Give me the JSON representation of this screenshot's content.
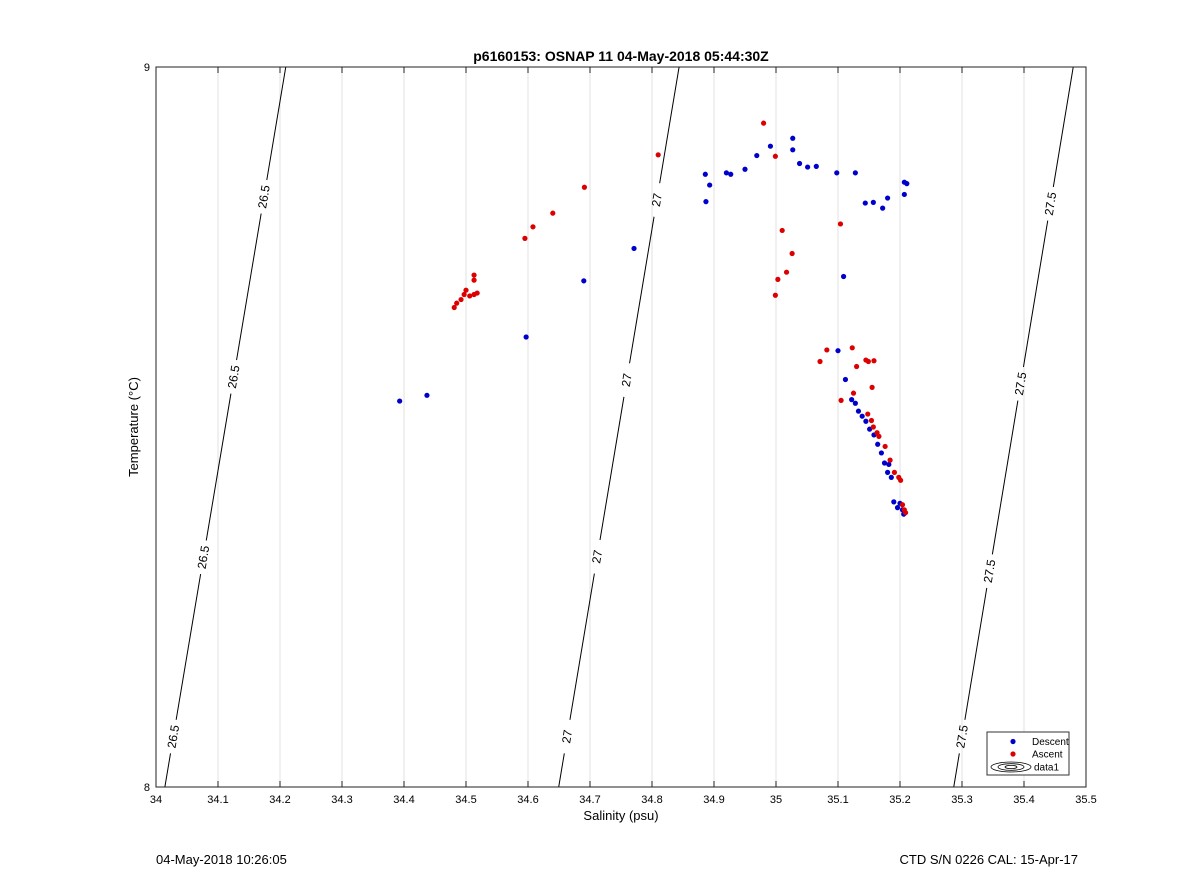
{
  "footer": {
    "timestamp": "04-May-2018 10:26:05",
    "ctd_info": "CTD S/N 0226  CAL: 15-Apr-17"
  },
  "chart_data": {
    "type": "scatter",
    "title": "p6160153: OSNAP 11 04-May-2018 05:44:30Z",
    "xlabel": "Salinity (psu)",
    "ylabel": "Temperature (°C)",
    "xlim": [
      34,
      35.5
    ],
    "ylim": [
      8,
      9
    ],
    "xticks": [
      34,
      34.1,
      34.2,
      34.3,
      34.4,
      34.5,
      34.6,
      34.7,
      34.8,
      34.9,
      35,
      35.1,
      35.2,
      35.3,
      35.4,
      35.5
    ],
    "xtick_labels": [
      "34",
      "34.1",
      "34.2",
      "34.3",
      "34.4",
      "34.5",
      "34.6",
      "34.7",
      "34.8",
      "34.9",
      "35",
      "35.1",
      "35.2",
      "35.3",
      "35.4",
      "35.5"
    ],
    "yticks": [
      8,
      9
    ],
    "ytick_labels": [
      "8",
      "9"
    ],
    "grid": "vertical",
    "legend_position": "bottom-right",
    "colors": {
      "descent": "#0000cc",
      "ascent": "#dd0000",
      "contour": "#000000",
      "grid": "#e0e0e0"
    },
    "contours": [
      {
        "label": "26.5",
        "points": [
          [
            34.0143,
            8.0
          ],
          [
            34.2093,
            9.0
          ]
        ],
        "label_positions": [
          [
            34.028,
            8.07
          ],
          [
            34.07,
            8.32
          ],
          [
            34.123,
            8.57
          ],
          [
            34.172,
            8.82
          ]
        ]
      },
      {
        "label": "27",
        "points": [
          [
            34.6495,
            8.0
          ],
          [
            34.8437,
            9.0
          ]
        ],
        "label_positions": [
          [
            34.663,
            8.07
          ],
          [
            34.71,
            8.32
          ],
          [
            34.76,
            8.565
          ],
          [
            34.81,
            8.815
          ]
        ]
      },
      {
        "label": "27.5",
        "points": [
          [
            35.2867,
            8.0
          ],
          [
            35.4794,
            9.0
          ]
        ],
        "label_positions": [
          [
            35.3,
            8.07
          ],
          [
            35.343,
            8.3
          ],
          [
            35.395,
            8.56
          ],
          [
            35.443,
            8.81
          ]
        ]
      }
    ],
    "series": [
      {
        "name": "Descent",
        "points": [
          [
            34.393,
            8.536
          ],
          [
            34.437,
            8.544
          ],
          [
            34.597,
            8.625
          ],
          [
            34.69,
            8.703
          ],
          [
            34.771,
            8.748
          ],
          [
            34.887,
            8.813
          ],
          [
            34.886,
            8.851
          ],
          [
            34.893,
            8.836
          ],
          [
            34.92,
            8.853
          ],
          [
            34.927,
            8.851
          ],
          [
            34.95,
            8.858
          ],
          [
            34.969,
            8.877
          ],
          [
            34.991,
            8.89
          ],
          [
            35.027,
            8.901
          ],
          [
            35.027,
            8.885
          ],
          [
            35.038,
            8.866
          ],
          [
            35.051,
            8.861
          ],
          [
            35.065,
            8.862
          ],
          [
            35.098,
            8.853
          ],
          [
            35.128,
            8.853
          ],
          [
            35.144,
            8.811
          ],
          [
            35.157,
            8.812
          ],
          [
            35.172,
            8.804
          ],
          [
            35.18,
            8.818
          ],
          [
            35.207,
            8.823
          ],
          [
            35.211,
            8.838
          ],
          [
            35.207,
            8.84
          ],
          [
            35.109,
            8.709
          ],
          [
            35.1,
            8.606
          ],
          [
            35.112,
            8.566
          ],
          [
            35.122,
            8.538
          ],
          [
            35.128,
            8.533
          ],
          [
            35.133,
            8.522
          ],
          [
            35.139,
            8.515
          ],
          [
            35.145,
            8.508
          ],
          [
            35.151,
            8.497
          ],
          [
            35.158,
            8.489
          ],
          [
            35.164,
            8.476
          ],
          [
            35.17,
            8.464
          ],
          [
            35.175,
            8.45
          ],
          [
            35.18,
            8.437
          ],
          [
            35.186,
            8.43
          ],
          [
            35.182,
            8.448
          ],
          [
            35.19,
            8.396
          ],
          [
            35.196,
            8.388
          ],
          [
            35.2,
            8.394
          ],
          [
            35.204,
            8.385
          ],
          [
            35.206,
            8.379
          ]
        ]
      },
      {
        "name": "Ascent",
        "points": [
          [
            34.481,
            8.666
          ],
          [
            34.485,
            8.672
          ],
          [
            34.492,
            8.677
          ],
          [
            34.5,
            8.69
          ],
          [
            34.497,
            8.684
          ],
          [
            34.506,
            8.682
          ],
          [
            34.513,
            8.684
          ],
          [
            34.513,
            8.711
          ],
          [
            34.513,
            8.704
          ],
          [
            34.518,
            8.686
          ],
          [
            34.595,
            8.762
          ],
          [
            34.608,
            8.778
          ],
          [
            34.64,
            8.797
          ],
          [
            34.691,
            8.833
          ],
          [
            34.81,
            8.878
          ],
          [
            34.98,
            8.922
          ],
          [
            34.999,
            8.876
          ],
          [
            35.01,
            8.773
          ],
          [
            35.026,
            8.741
          ],
          [
            35.017,
            8.715
          ],
          [
            35.003,
            8.705
          ],
          [
            34.999,
            8.683
          ],
          [
            35.104,
            8.782
          ],
          [
            35.071,
            8.591
          ],
          [
            35.082,
            8.607
          ],
          [
            35.123,
            8.61
          ],
          [
            35.13,
            8.584
          ],
          [
            35.105,
            8.537
          ],
          [
            35.125,
            8.547
          ],
          [
            35.145,
            8.593
          ],
          [
            35.149,
            8.591
          ],
          [
            35.158,
            8.592
          ],
          [
            35.155,
            8.555
          ],
          [
            35.148,
            8.518
          ],
          [
            35.154,
            8.509
          ],
          [
            35.157,
            8.5
          ],
          [
            35.163,
            8.492
          ],
          [
            35.166,
            8.487
          ],
          [
            35.176,
            8.473
          ],
          [
            35.184,
            8.454
          ],
          [
            35.191,
            8.437
          ],
          [
            35.198,
            8.43
          ],
          [
            35.201,
            8.426
          ],
          [
            35.204,
            8.392
          ],
          [
            35.207,
            8.385
          ],
          [
            35.209,
            8.381
          ]
        ]
      }
    ],
    "legend": [
      "Descent",
      "Ascent",
      "data1"
    ]
  }
}
